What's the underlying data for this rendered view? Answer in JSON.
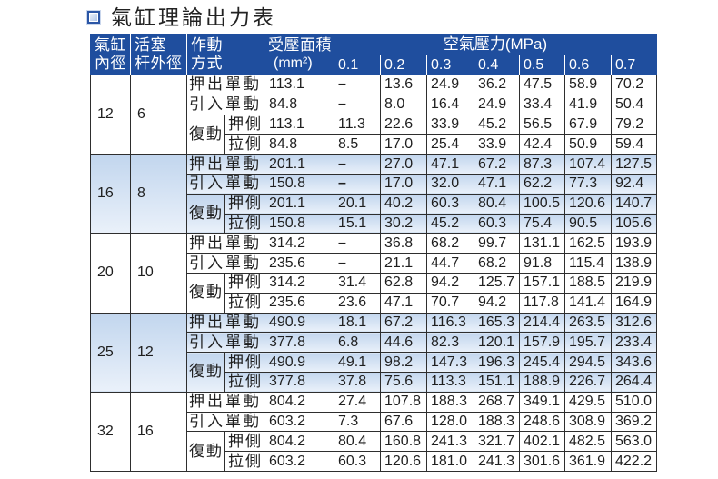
{
  "title": "氣缸理論出力表",
  "title_icon": "blue-square-icon",
  "colors": {
    "header_bg": "#1f4e9e",
    "header_text": "#ffffff",
    "band_top": "#c2d6ee",
    "band_bottom": "#eaf1fa",
    "grid": "#2e2e2e",
    "title_icon": "#2b56a6"
  },
  "header": {
    "bore": [
      "氣缸",
      "內徑"
    ],
    "rod": [
      "活塞",
      "杆外徑"
    ],
    "mode": [
      "作動",
      "方式"
    ],
    "area": [
      "受壓面積",
      "(mm²)"
    ],
    "pressure_title": "空氣壓力(MPa)",
    "pressures": [
      "0.1",
      "0.2",
      "0.3",
      "0.4",
      "0.5",
      "0.6",
      "0.7"
    ]
  },
  "groups": [
    {
      "bore": "12",
      "rod": "6",
      "single": [
        {
          "mode": "押出單動",
          "area": "113.1",
          "forces": [
            "–",
            "13.6",
            "24.9",
            "36.2",
            "47.5",
            "58.9",
            "70.2"
          ]
        },
        {
          "mode": "引入單動",
          "area": "84.8",
          "forces": [
            "–",
            "8.0",
            "16.4",
            "24.9",
            "33.4",
            "41.9",
            "50.4"
          ]
        }
      ],
      "double_label": "復動",
      "double": [
        {
          "side": "押側",
          "area": "113.1",
          "forces": [
            "11.3",
            "22.6",
            "33.9",
            "45.2",
            "56.5",
            "67.9",
            "79.2"
          ]
        },
        {
          "side": "拉側",
          "area": "84.8",
          "forces": [
            "8.5",
            "17.0",
            "25.4",
            "33.9",
            "42.4",
            "50.9",
            "59.4"
          ]
        }
      ]
    },
    {
      "bore": "16",
      "rod": "8",
      "single": [
        {
          "mode": "押出單動",
          "area": "201.1",
          "forces": [
            "–",
            "27.0",
            "47.1",
            "67.2",
            "87.3",
            "107.4",
            "127.5"
          ]
        },
        {
          "mode": "引入單動",
          "area": "150.8",
          "forces": [
            "–",
            "17.0",
            "32.0",
            "47.1",
            "62.2",
            "77.3",
            "92.4"
          ]
        }
      ],
      "double_label": "復動",
      "double": [
        {
          "side": "押側",
          "area": "201.1",
          "forces": [
            "20.1",
            "40.2",
            "60.3",
            "80.4",
            "100.5",
            "120.6",
            "140.7"
          ]
        },
        {
          "side": "拉側",
          "area": "150.8",
          "forces": [
            "15.1",
            "30.2",
            "45.2",
            "60.3",
            "75.4",
            "90.5",
            "105.6"
          ]
        }
      ]
    },
    {
      "bore": "20",
      "rod": "10",
      "single": [
        {
          "mode": "押出單動",
          "area": "314.2",
          "forces": [
            "–",
            "36.8",
            "68.2",
            "99.7",
            "131.1",
            "162.5",
            "193.9"
          ]
        },
        {
          "mode": "引入單動",
          "area": "235.6",
          "forces": [
            "–",
            "21.1",
            "44.7",
            "68.2",
            "91.8",
            "115.4",
            "138.9"
          ]
        }
      ],
      "double_label": "復動",
      "double": [
        {
          "side": "押側",
          "area": "314.2",
          "forces": [
            "31.4",
            "62.8",
            "94.2",
            "125.7",
            "157.1",
            "188.5",
            "219.9"
          ]
        },
        {
          "side": "拉側",
          "area": "235.6",
          "forces": [
            "23.6",
            "47.1",
            "70.7",
            "94.2",
            "117.8",
            "141.4",
            "164.9"
          ]
        }
      ]
    },
    {
      "bore": "25",
      "rod": "12",
      "single": [
        {
          "mode": "押出單動",
          "area": "490.9",
          "forces": [
            "18.1",
            "67.2",
            "116.3",
            "165.3",
            "214.4",
            "263.5",
            "312.6"
          ]
        },
        {
          "mode": "引入單動",
          "area": "377.8",
          "forces": [
            "6.8",
            "44.6",
            "82.3",
            "120.1",
            "157.9",
            "195.7",
            "233.4"
          ]
        }
      ],
      "double_label": "復動",
      "double": [
        {
          "side": "押側",
          "area": "490.9",
          "forces": [
            "49.1",
            "98.2",
            "147.3",
            "196.3",
            "245.4",
            "294.5",
            "343.6"
          ]
        },
        {
          "side": "拉側",
          "area": "377.8",
          "forces": [
            "37.8",
            "75.6",
            "113.3",
            "151.1",
            "188.9",
            "226.7",
            "264.4"
          ]
        }
      ]
    },
    {
      "bore": "32",
      "rod": "16",
      "single": [
        {
          "mode": "押出單動",
          "area": "804.2",
          "forces": [
            "27.4",
            "107.8",
            "188.3",
            "268.7",
            "349.1",
            "429.5",
            "510.0"
          ]
        },
        {
          "mode": "引入單動",
          "area": "603.2",
          "forces": [
            "7.3",
            "67.6",
            "128.0",
            "188.3",
            "248.6",
            "308.9",
            "369.2"
          ]
        }
      ],
      "double_label": "復動",
      "double": [
        {
          "side": "押側",
          "area": "804.2",
          "forces": [
            "80.4",
            "160.8",
            "241.3",
            "321.7",
            "402.1",
            "482.5",
            "563.0"
          ]
        },
        {
          "side": "拉側",
          "area": "603.2",
          "forces": [
            "60.3",
            "120.6",
            "181.0",
            "241.3",
            "301.6",
            "361.9",
            "422.2"
          ]
        }
      ]
    }
  ]
}
